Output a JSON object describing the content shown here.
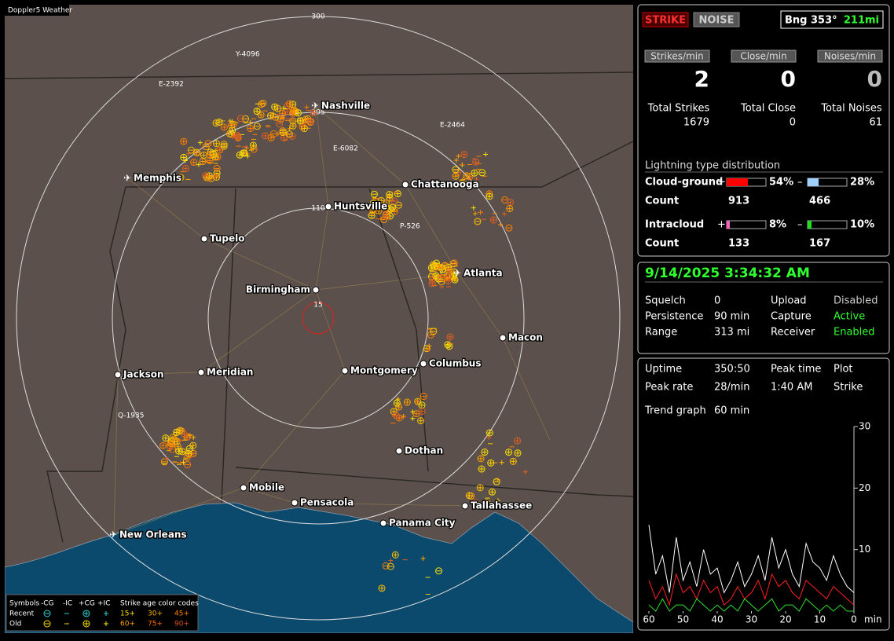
{
  "header": {
    "title": "Doppler5 Weather"
  },
  "map": {
    "ring_labels": [
      "15",
      "110",
      "205",
      "300"
    ],
    "cities": [
      "Nashville",
      "Memphis",
      "Chattanooga",
      "Huntsville",
      "Tupelo",
      "Atlanta",
      "Birmingham",
      "Macon",
      "Jackson",
      "Meridian",
      "Montgomery",
      "Columbus",
      "Dothan",
      "Mobile",
      "Pensacola",
      "Tallahassee",
      "Panama City",
      "New Orleans"
    ],
    "storm_labels": [
      "Y-4096",
      "E-2392",
      "E-2464",
      "E-6082",
      "P-526",
      "Q-1935"
    ],
    "legend": {
      "symbols": "Symbols",
      "columns": [
        "-CG",
        "-IC",
        "+CG",
        "+IC"
      ],
      "age_title": "Strike age color codes",
      "rows": [
        "Recent",
        "Old"
      ],
      "recent_ages": [
        "15+",
        "30+",
        "45+"
      ],
      "old_ages": [
        "60+",
        "75+",
        "90+"
      ]
    }
  },
  "status": {
    "buttons": [
      "STRIKE",
      "NOISE"
    ],
    "bearing": "Bng 353°",
    "distance": "211mi",
    "rates": [
      {
        "label": "Strikes/min",
        "value": "2"
      },
      {
        "label": "Close/min",
        "value": "0"
      },
      {
        "label": "Noises/min",
        "value": "0"
      }
    ],
    "totals": [
      {
        "label": "Total Strikes",
        "value": "1679"
      },
      {
        "label": "Total Close",
        "value": "0"
      },
      {
        "label": "Total Noises",
        "value": "61"
      }
    ],
    "distribution": {
      "title": "Lightning type distribution",
      "count_label": "Count",
      "types": [
        {
          "name": "Cloud-ground",
          "plus": 54,
          "plus_label": "54%",
          "minus": 28,
          "minus_label": "28%",
          "plus_count": "913",
          "minus_count": "466"
        },
        {
          "name": "Intracloud",
          "plus": 8,
          "plus_label": "8%",
          "minus": 10,
          "minus_label": "10%",
          "plus_count": "133",
          "minus_count": "167"
        }
      ]
    }
  },
  "settings": {
    "datetime": "9/14/2025 3:34:32 AM",
    "rows": [
      [
        "Squelch",
        "0",
        "Upload",
        "Disabled"
      ],
      [
        "Persistence",
        "90 min",
        "Capture",
        "Active"
      ],
      [
        "Range",
        "313 mi",
        "Receiver",
        "Enabled"
      ]
    ]
  },
  "stats": {
    "rows": [
      [
        "Uptime",
        "350:50",
        "Peak time",
        "Plot"
      ],
      [
        "Peak rate",
        "28/min",
        "1:40 AM",
        "Strike"
      ],
      [
        "Trend graph",
        "60 min"
      ]
    ]
  },
  "trend_graph": {
    "xlim": [
      60,
      0
    ],
    "ylim": [
      0,
      30
    ],
    "xticks": [
      60,
      50,
      40,
      30,
      20,
      10,
      0
    ],
    "yticks": [
      10,
      20,
      30
    ],
    "xlabel": "min",
    "x": [
      60,
      58,
      56,
      54,
      52,
      50,
      48,
      46,
      44,
      42,
      40,
      38,
      36,
      34,
      32,
      30,
      28,
      26,
      24,
      22,
      20,
      18,
      16,
      14,
      12,
      10,
      8,
      6,
      4,
      2,
      0
    ],
    "series": [
      {
        "color": "#ffffff",
        "values": [
          14,
          6,
          9,
          3,
          12,
          5,
          8,
          4,
          10,
          6,
          7,
          3,
          5,
          8,
          4,
          6,
          9,
          5,
          12,
          7,
          10,
          6,
          4,
          11,
          8,
          7,
          5,
          9,
          6,
          4,
          3
        ]
      },
      {
        "color": "#ff2020",
        "values": [
          5,
          2,
          4,
          1,
          6,
          3,
          4,
          2,
          5,
          3,
          4,
          1,
          2,
          4,
          2,
          3,
          5,
          2,
          6,
          4,
          5,
          3,
          2,
          5,
          4,
          3,
          2,
          4,
          3,
          2,
          1
        ]
      },
      {
        "color": "#30e030",
        "values": [
          1,
          0,
          2,
          0,
          1,
          1,
          0,
          2,
          1,
          0,
          1,
          0,
          1,
          0,
          2,
          1,
          0,
          1,
          2,
          0,
          1,
          1,
          0,
          2,
          1,
          0,
          1,
          0,
          1,
          0,
          0
        ]
      }
    ]
  }
}
